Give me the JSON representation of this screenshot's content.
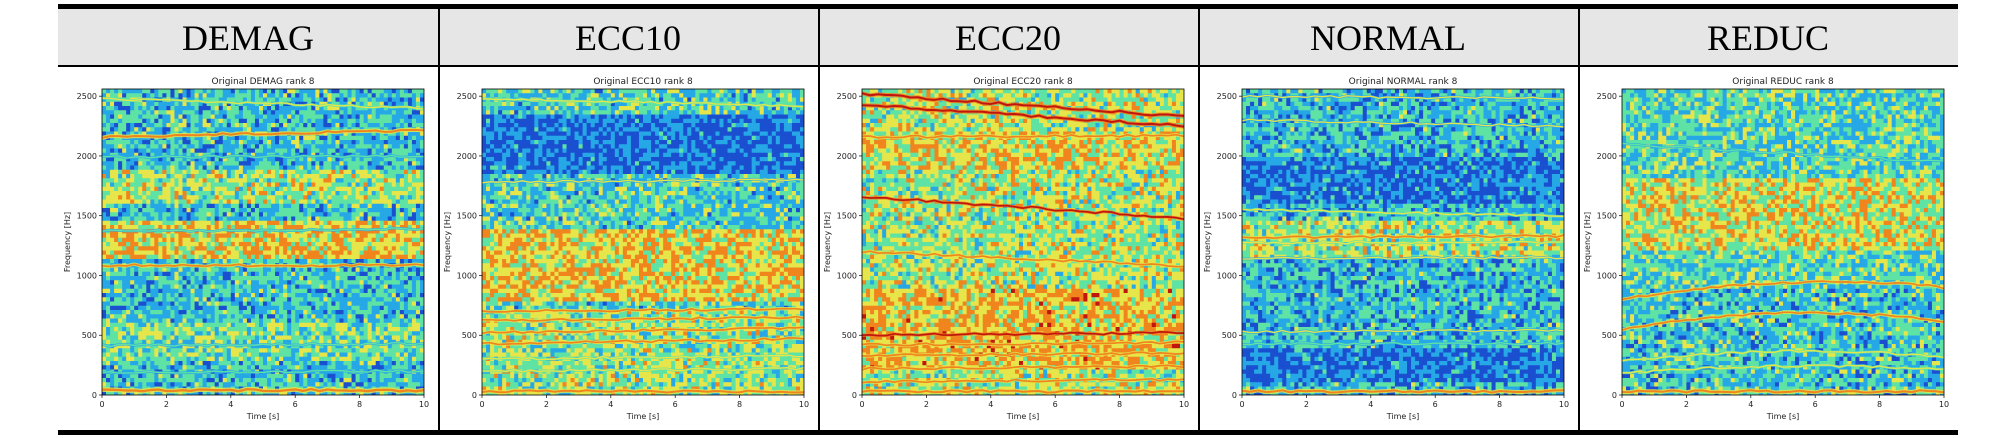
{
  "figure": {
    "columns": [
      {
        "heading": "DEMAG",
        "plot_title": "Original DEMAG rank 8"
      },
      {
        "heading": "ECC10",
        "plot_title": "Original ECC10 rank 8"
      },
      {
        "heading": "ECC20",
        "plot_title": "Original ECC20 rank 8"
      },
      {
        "heading": "NORMAL",
        "plot_title": "Original NORMAL rank 8"
      },
      {
        "heading": "REDUC",
        "plot_title": "Original REDUC rank 8"
      }
    ]
  },
  "colors": {
    "bg_low": "#1a4fd0",
    "mid_low": "#27a8e6",
    "mid": "#5fe3a5",
    "mid_high": "#e6e64a",
    "high": "#f0851e",
    "peak": "#c0160e"
  },
  "chart_data": [
    {
      "type": "heatmap",
      "title": "Original DEMAG rank 8",
      "xlabel": "Time [s]",
      "ylabel": "Frequency [Hz]",
      "xlim": [
        0,
        10
      ],
      "ylim": [
        0,
        2560
      ],
      "xticks": [
        "0",
        "2",
        "4",
        "6",
        "8",
        "10"
      ],
      "yticks": [
        "0",
        "500",
        "1000",
        "1500",
        "2000",
        "2500"
      ],
      "base_intensity": 0.32,
      "bands": [
        {
          "f0": 1600,
          "f1": 1900,
          "amp": 0.18
        },
        {
          "f0": 1150,
          "f1": 1450,
          "amp": 0.3
        },
        {
          "f0": 300,
          "f1": 600,
          "amp": 0.12
        }
      ],
      "lines": [
        {
          "f0": 2160,
          "f1": 2215,
          "amp": 0.82,
          "w": 12
        },
        {
          "f0": 1085,
          "f1": 1085,
          "amp": 0.72,
          "w": 10
        },
        {
          "f0": 2480,
          "f1": 2400,
          "amp": 0.55,
          "w": 8
        },
        {
          "f0": 1990,
          "f1": 2000,
          "amp": 0.45,
          "w": 8
        },
        {
          "f0": 1370,
          "f1": 1390,
          "amp": 0.45,
          "w": 8
        },
        {
          "f0": 415,
          "f1": 430,
          "amp": 0.4,
          "w": 8
        },
        {
          "f0": 190,
          "f1": 200,
          "amp": 0.45,
          "w": 8
        },
        {
          "f0": 40,
          "f1": 40,
          "amp": 0.75,
          "w": 14
        }
      ]
    },
    {
      "type": "heatmap",
      "title": "Original ECC10 rank 8",
      "xlabel": "Time [s]",
      "ylabel": "Frequency [Hz]",
      "xlim": [
        0,
        10
      ],
      "ylim": [
        0,
        2560
      ],
      "xticks": [
        "0",
        "2",
        "4",
        "6",
        "8",
        "10"
      ],
      "yticks": [
        "0",
        "500",
        "1000",
        "1500",
        "2000",
        "2500"
      ],
      "base_intensity": 0.36,
      "bands": [
        {
          "f0": 1850,
          "f1": 2350,
          "amp": -0.22
        },
        {
          "f0": 800,
          "f1": 1400,
          "amp": 0.26
        },
        {
          "f0": 0,
          "f1": 700,
          "amp": 0.12
        }
      ],
      "lines": [
        {
          "f0": 2480,
          "f1": 2420,
          "amp": 0.55,
          "w": 8
        },
        {
          "f0": 1780,
          "f1": 1800,
          "amp": 0.5,
          "w": 8
        },
        {
          "f0": 700,
          "f1": 720,
          "amp": 0.78,
          "w": 10
        },
        {
          "f0": 620,
          "f1": 650,
          "amp": 0.78,
          "w": 10
        },
        {
          "f0": 520,
          "f1": 560,
          "amp": 0.78,
          "w": 10
        },
        {
          "f0": 430,
          "f1": 470,
          "amp": 0.72,
          "w": 10
        },
        {
          "f0": 300,
          "f1": 330,
          "amp": 0.65,
          "w": 8
        },
        {
          "f0": 200,
          "f1": 220,
          "amp": 0.6,
          "w": 8
        },
        {
          "f0": 30,
          "f1": 30,
          "amp": 0.7,
          "w": 12
        }
      ]
    },
    {
      "type": "heatmap",
      "title": "Original ECC20 rank 8",
      "xlabel": "Time [s]",
      "ylabel": "Frequency [Hz]",
      "xlim": [
        0,
        10
      ],
      "ylim": [
        0,
        2560
      ],
      "xticks": [
        "0",
        "2",
        "4",
        "6",
        "8",
        "10"
      ],
      "yticks": [
        "0",
        "500",
        "1000",
        "1500",
        "2000",
        "2500"
      ],
      "base_intensity": 0.5,
      "bands": [
        {
          "f0": 1900,
          "f1": 2200,
          "amp": 0.1
        },
        {
          "f0": 200,
          "f1": 900,
          "amp": 0.14
        }
      ],
      "lines": [
        {
          "f0": 2520,
          "f1": 2330,
          "amp": 0.9,
          "w": 12
        },
        {
          "f0": 2430,
          "f1": 2250,
          "amp": 0.85,
          "w": 12
        },
        {
          "f0": 2160,
          "f1": 2170,
          "amp": 0.75,
          "w": 10
        },
        {
          "f0": 1660,
          "f1": 1480,
          "amp": 0.85,
          "w": 10
        },
        {
          "f0": 1200,
          "f1": 1080,
          "amp": 0.75,
          "w": 10
        },
        {
          "f0": 500,
          "f1": 520,
          "amp": 0.85,
          "w": 10
        },
        {
          "f0": 420,
          "f1": 440,
          "amp": 0.82,
          "w": 10
        },
        {
          "f0": 330,
          "f1": 350,
          "amp": 0.8,
          "w": 10
        },
        {
          "f0": 220,
          "f1": 240,
          "amp": 0.75,
          "w": 10
        },
        {
          "f0": 110,
          "f1": 130,
          "amp": 0.72,
          "w": 10
        },
        {
          "f0": 30,
          "f1": 30,
          "amp": 0.75,
          "w": 12
        }
      ]
    },
    {
      "type": "heatmap",
      "title": "Original NORMAL rank 8",
      "xlabel": "Time [s]",
      "ylabel": "Frequency [Hz]",
      "xlim": [
        0,
        10
      ],
      "ylim": [
        0,
        2560
      ],
      "xticks": [
        "0",
        "2",
        "4",
        "6",
        "8",
        "10"
      ],
      "yticks": [
        "0",
        "500",
        "1000",
        "1500",
        "2000",
        "2500"
      ],
      "base_intensity": 0.3,
      "bands": [
        {
          "f0": 1600,
          "f1": 2000,
          "amp": -0.15
        },
        {
          "f0": 1150,
          "f1": 1450,
          "amp": 0.2
        },
        {
          "f0": 100,
          "f1": 400,
          "amp": -0.15
        }
      ],
      "lines": [
        {
          "f0": 2500,
          "f1": 2480,
          "amp": 0.5,
          "w": 8
        },
        {
          "f0": 2300,
          "f1": 2250,
          "amp": 0.5,
          "w": 8
        },
        {
          "f0": 1550,
          "f1": 1500,
          "amp": 0.55,
          "w": 8
        },
        {
          "f0": 1320,
          "f1": 1330,
          "amp": 0.78,
          "w": 10
        },
        {
          "f0": 1270,
          "f1": 1280,
          "amp": 0.65,
          "w": 8
        },
        {
          "f0": 1140,
          "f1": 1150,
          "amp": 0.5,
          "w": 8
        },
        {
          "f0": 530,
          "f1": 540,
          "amp": 0.5,
          "w": 8
        },
        {
          "f0": 430,
          "f1": 430,
          "amp": 0.48,
          "w": 8
        },
        {
          "f0": 30,
          "f1": 30,
          "amp": 0.7,
          "w": 12
        }
      ]
    },
    {
      "type": "heatmap",
      "title": "Original REDUC rank 8",
      "xlabel": "Time [s]",
      "ylabel": "Frequency [Hz]",
      "xlim": [
        0,
        10
      ],
      "ylim": [
        0,
        2560
      ],
      "xticks": [
        "0",
        "2",
        "4",
        "6",
        "8",
        "10"
      ],
      "yticks": [
        "0",
        "500",
        "1000",
        "1500",
        "2000",
        "2500"
      ],
      "base_intensity": 0.38,
      "bands": [
        {
          "f0": 1200,
          "f1": 1800,
          "amp": 0.18
        },
        {
          "f0": 0,
          "f1": 900,
          "amp": -0.05
        }
      ],
      "lines": [
        {
          "f0": 800,
          "f1": 900,
          "mid": 1030,
          "amp": 0.72,
          "w": 10
        },
        {
          "f0": 550,
          "f1": 620,
          "mid": 780,
          "amp": 0.68,
          "w": 10
        },
        {
          "f0": 280,
          "f1": 320,
          "mid": 430,
          "amp": 0.62,
          "w": 8
        },
        {
          "f0": 180,
          "f1": 210,
          "mid": 290,
          "amp": 0.58,
          "w": 8
        },
        {
          "f0": 2100,
          "f1": 1950,
          "amp": 0.45,
          "w": 8
        },
        {
          "f0": 30,
          "f1": 30,
          "amp": 0.7,
          "w": 12
        }
      ]
    }
  ]
}
